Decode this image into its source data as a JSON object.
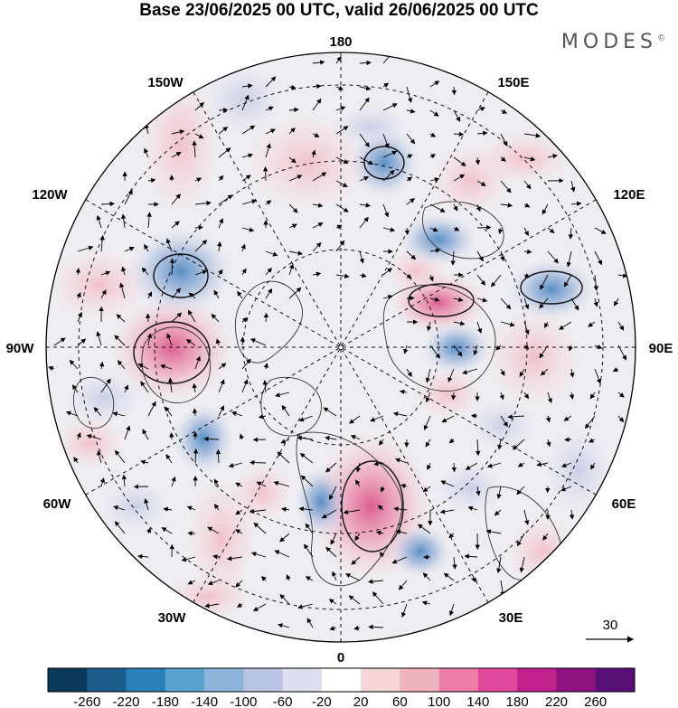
{
  "title": "Base 23/06/2025 00 UTC, valid 26/06/2025 00 UTC",
  "brand": "MODES",
  "brand_mark": "©",
  "map": {
    "projection": "north-polar-stereographic",
    "longitude_labels": {
      "top": "180",
      "bottom": "0",
      "left": "90W",
      "right": "90E",
      "upper_left": "150W",
      "upper_right": "150E",
      "mid_left_upper": "120W",
      "mid_right_upper": "120E",
      "mid_left_lower": "60W",
      "mid_right_lower": "60E",
      "lower_left": "30W",
      "lower_right": "30E"
    },
    "positive_color": "#e8a3b2",
    "negative_color": "#98aed4"
  },
  "vector_key": {
    "value": "30"
  },
  "colorbar": {
    "colors": [
      "#0c3a5c",
      "#1b5d8c",
      "#2c80b8",
      "#5aa2cf",
      "#8db3da",
      "#b8c4e1",
      "#dedfee",
      "#ffffff",
      "#f7d6da",
      "#f1b3c0",
      "#ec7fa7",
      "#e04a9c",
      "#c0218a",
      "#8e1280",
      "#5a1177"
    ],
    "ticks": [
      "-260",
      "-220",
      "-180",
      "-140",
      "-100",
      "-60",
      "-20",
      "20",
      "60",
      "100",
      "140",
      "180",
      "220",
      "260"
    ]
  }
}
